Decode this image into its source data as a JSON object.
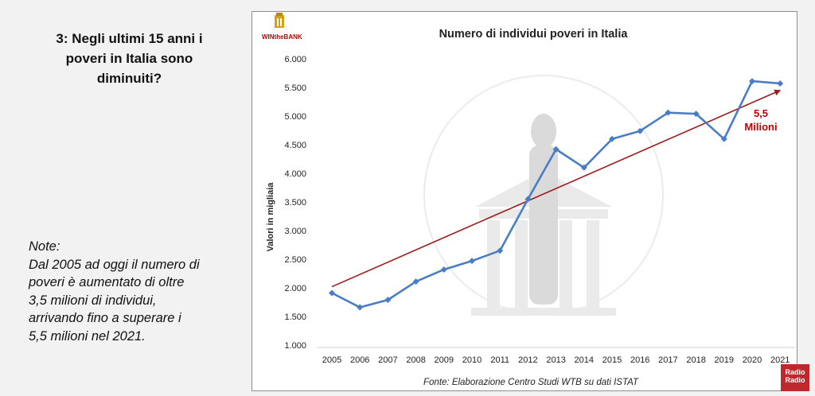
{
  "question_lines": [
    "3: Negli ultimi 15 anni i",
    "poveri in Italia sono",
    "diminuiti?"
  ],
  "notes_lines": [
    "Note:",
    "Dal 2005 ad oggi il numero di",
    "poveri è aumentato di oltre",
    "3,5 milioni di individui,",
    "arrivando fino a superare i",
    "5,5 milioni nel 2021."
  ],
  "logo": {
    "text": "WINtheBANK",
    "color": "#c00000"
  },
  "badge": {
    "line1": "Radio",
    "line2": "Radio"
  },
  "chart_data": {
    "type": "line",
    "title": "Numero di individui poveri in Italia",
    "ylabel": "Valori in migliaia",
    "xlabel": "",
    "source": "Fonte: Elaborazione Centro Studi WTB su dati ISTAT",
    "categories": [
      "2005",
      "2006",
      "2007",
      "2008",
      "2009",
      "2010",
      "2011",
      "2012",
      "2013",
      "2014",
      "2015",
      "2016",
      "2017",
      "2018",
      "2019",
      "2020",
      "2021"
    ],
    "series": [
      {
        "name": "",
        "color": "#4a7dc4",
        "values": [
          1910,
          1660,
          1790,
          2110,
          2320,
          2470,
          2650,
          3550,
          4420,
          4100,
          4600,
          4740,
          5060,
          5040,
          4600,
          5610,
          5570
        ]
      }
    ],
    "trendline": {
      "color": "#9e1b1b",
      "start_value": 2020,
      "end_value": 5450
    },
    "annotation": {
      "lines": [
        "5,5",
        "Milioni"
      ],
      "color": "#c00000"
    },
    "ylim": [
      1000,
      6000
    ],
    "yticks": [
      1000,
      1500,
      2000,
      2500,
      3000,
      3500,
      4000,
      4500,
      5000,
      5500,
      6000
    ],
    "ytick_labels": [
      "1.000",
      "1.500",
      "2.000",
      "2.500",
      "3.000",
      "3.500",
      "4.000",
      "4.500",
      "5.000",
      "5.500",
      "6.000"
    ],
    "grid": false,
    "legend": "none"
  }
}
